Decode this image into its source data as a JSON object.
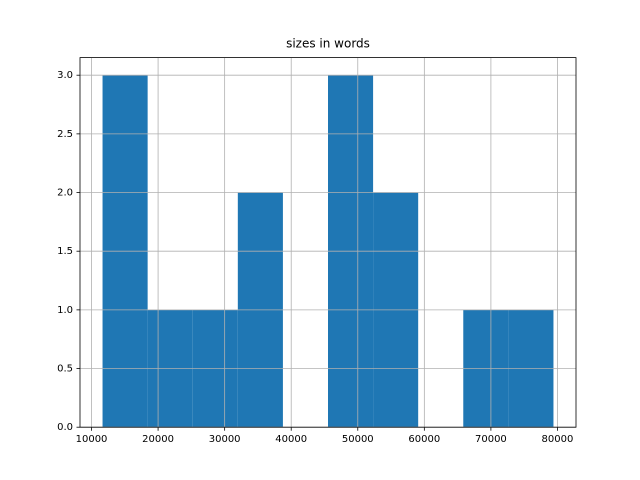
{
  "chart_data": {
    "type": "histogram",
    "title": "sizes in words",
    "bins": [
      11656,
      18430,
      25204,
      31979,
      38753,
      45527,
      52301,
      59075,
      65850,
      72624,
      79398
    ],
    "values": [
      3,
      1,
      1,
      2,
      0,
      3,
      2,
      0,
      1,
      1
    ],
    "color": "#1f77b4",
    "xlim": [
      8269,
      82785
    ],
    "xticks": [
      10000,
      20000,
      30000,
      40000,
      50000,
      60000,
      70000,
      80000
    ],
    "ylim": [
      0,
      3.15
    ],
    "yticks": [
      {
        "value": 0,
        "label": "0.0"
      },
      {
        "value": 0.5,
        "label": "0.5"
      },
      {
        "value": 1,
        "label": "1.0"
      },
      {
        "value": 1.5,
        "label": "1.5"
      },
      {
        "value": 2,
        "label": "2.0"
      },
      {
        "value": 2.5,
        "label": "2.5"
      },
      {
        "value": 3,
        "label": "3.0"
      }
    ],
    "grid": true
  }
}
